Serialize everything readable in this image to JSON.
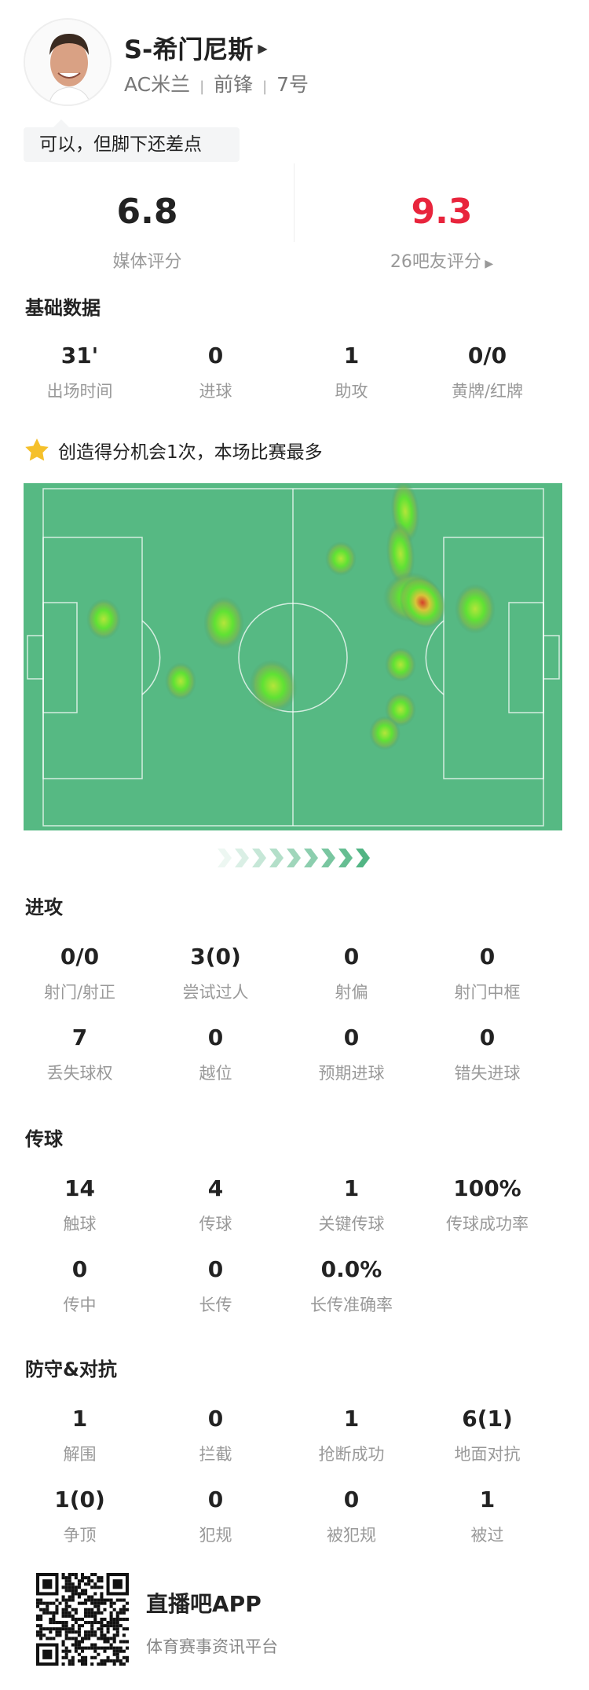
{
  "player": {
    "name": "S-希门尼斯",
    "team": "AC米兰",
    "position": "前锋",
    "number": "7号",
    "separator": "|",
    "comment": "可以，但脚下还差点"
  },
  "ratings": {
    "media": {
      "value": "6.8",
      "label": "媒体评分"
    },
    "fans": {
      "value": "9.3",
      "label": "26吧友评分",
      "color": "#e8243c"
    }
  },
  "basic": {
    "title": "基础数据",
    "stats": [
      {
        "value": "31'",
        "label": "出场时间"
      },
      {
        "value": "0",
        "label": "进球"
      },
      {
        "value": "1",
        "label": "助攻"
      },
      {
        "value": "0/0",
        "label": "黄牌/红牌"
      }
    ]
  },
  "highlight": {
    "icon": "star-icon",
    "text": "创造得分机会1次，本场比赛最多",
    "icon_color": "#f5c02a"
  },
  "heatmap": {
    "pitch_color": "#56b983"
  },
  "attack": {
    "title": "进攻",
    "stats": [
      {
        "value": "0/0",
        "label": "射门/射正"
      },
      {
        "value": "3(0)",
        "label": "尝试过人"
      },
      {
        "value": "0",
        "label": "射偏"
      },
      {
        "value": "0",
        "label": "射门中框"
      },
      {
        "value": "7",
        "label": "丢失球权"
      },
      {
        "value": "0",
        "label": "越位"
      },
      {
        "value": "0",
        "label": "预期进球"
      },
      {
        "value": "0",
        "label": "错失进球"
      }
    ]
  },
  "passing": {
    "title": "传球",
    "stats": [
      {
        "value": "14",
        "label": "触球"
      },
      {
        "value": "4",
        "label": "传球"
      },
      {
        "value": "1",
        "label": "关键传球"
      },
      {
        "value": "100%",
        "label": "传球成功率"
      },
      {
        "value": "0",
        "label": "传中"
      },
      {
        "value": "0",
        "label": "长传"
      },
      {
        "value": "0.0%",
        "label": "长传准确率"
      }
    ]
  },
  "defense": {
    "title": "防守&对抗",
    "stats": [
      {
        "value": "1",
        "label": "解围"
      },
      {
        "value": "0",
        "label": "拦截"
      },
      {
        "value": "1",
        "label": "抢断成功"
      },
      {
        "value": "6(1)",
        "label": "地面对抗"
      },
      {
        "value": "1(0)",
        "label": "争顶"
      },
      {
        "value": "0",
        "label": "犯规"
      },
      {
        "value": "0",
        "label": "被犯规"
      },
      {
        "value": "1",
        "label": "被过"
      }
    ]
  },
  "footer": {
    "app_name": "直播吧APP",
    "tagline": "体育赛事资讯平台"
  }
}
